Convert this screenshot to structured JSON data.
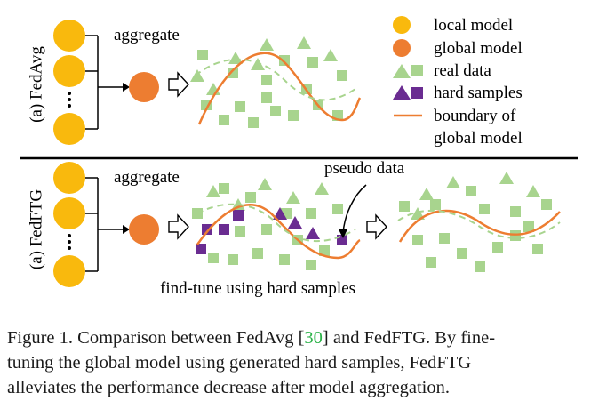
{
  "figure": {
    "top_panel": {
      "label": "(a) FedAvg",
      "aggregate": "aggregate"
    },
    "bottom_panel": {
      "label": "(a) FedFTG",
      "aggregate": "aggregate",
      "pseudo_data": "pseudo data",
      "finetune": "find-tune using hard samples"
    },
    "legend": {
      "local_model": "local model",
      "global_model": "global model",
      "real_data": "real data",
      "hard_samples": "hard samples",
      "boundary": [
        "boundary of",
        "global model"
      ]
    }
  },
  "caption": {
    "lines": [
      [
        "Figure 1. Comparison between FedAvg [",
        "30",
        "] and FedFTG. By fine-"
      ],
      [
        "tuning the global model using generated hard samples, FedFTG"
      ],
      [
        "alleviates the performance decrease after model aggregation."
      ]
    ]
  }
}
